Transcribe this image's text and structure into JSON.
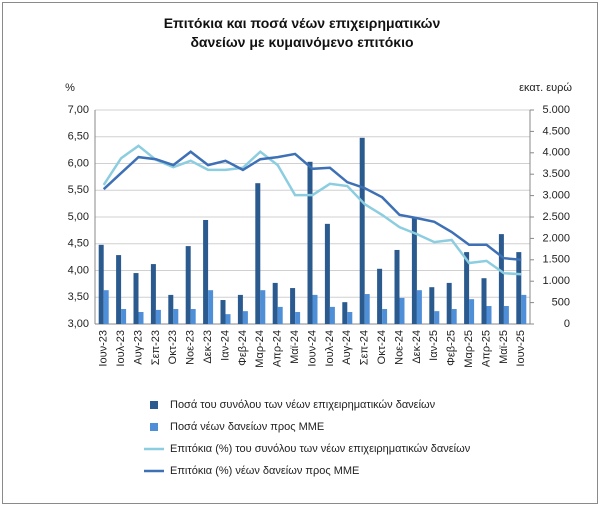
{
  "chart_data": {
    "type": "bar",
    "title": "Επιτόκια και ποσά νέων επιχειρηματικών δανείων με κυμαινόμενο επιτόκιο",
    "y_label": "%",
    "y2_label": "εκατ. ευρώ",
    "categories": [
      "Ιουν-23",
      "Ιουλ-23",
      "Αυγ-23",
      "Σεπ-23",
      "Οκτ-23",
      "Νοε-23",
      "Δεκ-23",
      "Ιαν-24",
      "Φεβ-24",
      "Μαρ-24",
      "Απρ-24",
      "Μαϊ-24",
      "Ιουν-24",
      "Ιουλ-24",
      "Αυγ-24",
      "Σεπ-24",
      "Οκτ-24",
      "Νοε-24",
      "Δεκ-24",
      "Ιαν-25",
      "Φεβ-25",
      "Μαρ-25",
      "Απρ-25",
      "Μαϊ-25",
      "Ιουν-25"
    ],
    "series": [
      {
        "name": "Ποσά του συνόλου των νέων επιχειρηματικών δανείων",
        "type": "bar",
        "axis": "y2",
        "color": "#2b5a8e",
        "values": [
          1850,
          1610,
          1190,
          1400,
          680,
          1820,
          2430,
          560,
          680,
          3290,
          960,
          840,
          3790,
          2340,
          510,
          4350,
          1290,
          1730,
          2480,
          860,
          960,
          1680,
          1070,
          2100,
          1680
        ]
      },
      {
        "name": "Ποσά νέων δανείων προς ΜΜΕ",
        "type": "bar",
        "axis": "y2",
        "color": "#4f8fd8",
        "values": [
          790,
          350,
          280,
          330,
          350,
          350,
          790,
          230,
          300,
          790,
          400,
          280,
          680,
          400,
          280,
          700,
          350,
          610,
          790,
          300,
          350,
          580,
          420,
          420,
          680
        ]
      },
      {
        "name": "Επιτόκια (%) του συνόλου των νέων επιχειρηματικών δανείων",
        "type": "line",
        "axis": "y",
        "color": "#8ccde0",
        "values": [
          5.6,
          6.1,
          6.33,
          6.07,
          5.93,
          6.05,
          5.88,
          5.88,
          5.92,
          6.22,
          5.97,
          5.41,
          5.41,
          5.62,
          5.58,
          5.24,
          5.04,
          4.81,
          4.68,
          4.53,
          4.57,
          4.14,
          4.18,
          3.95,
          3.93
        ]
      },
      {
        "name": "Επιτόκια (%) νέων δανείων προς ΜΜΕ",
        "type": "line",
        "axis": "y",
        "color": "#3d70b5",
        "values": [
          5.52,
          5.82,
          6.12,
          6.08,
          5.97,
          6.22,
          5.97,
          6.05,
          5.88,
          6.08,
          6.12,
          6.18,
          5.9,
          5.92,
          5.65,
          5.54,
          5.37,
          5.04,
          4.98,
          4.91,
          4.72,
          4.48,
          4.48,
          4.23,
          4.2
        ]
      }
    ],
    "ylim": [
      3,
      7
    ],
    "yticks": [
      {
        "value": 3,
        "label": "3,00"
      },
      {
        "value": 3.5,
        "label": "3,50"
      },
      {
        "value": 4,
        "label": "4,00"
      },
      {
        "value": 4.5,
        "label": "4,50"
      },
      {
        "value": 5,
        "label": "5,00"
      },
      {
        "value": 5.5,
        "label": "5,50"
      },
      {
        "value": 6,
        "label": "6,00"
      },
      {
        "value": 6.5,
        "label": "6,50"
      },
      {
        "value": 7,
        "label": "7,00"
      }
    ],
    "y2lim": [
      0,
      5000
    ],
    "y2ticks": [
      0,
      {
        "value": 500,
        "label": "500"
      },
      {
        "value": 1000,
        "label": "1.000"
      },
      {
        "value": 1500,
        "label": "1.500"
      },
      {
        "value": 2000,
        "label": "2.000"
      },
      {
        "value": 2500,
        "label": "2.500"
      },
      {
        "value": 3000,
        "label": "3.000"
      },
      {
        "value": 3500,
        "label": "3.500"
      },
      {
        "value": 4000,
        "label": "4.000"
      },
      {
        "value": 4500,
        "label": "4.500"
      },
      {
        "value": 5000,
        "label": "5.000"
      }
    ],
    "grid": true,
    "legend": "bottom"
  }
}
